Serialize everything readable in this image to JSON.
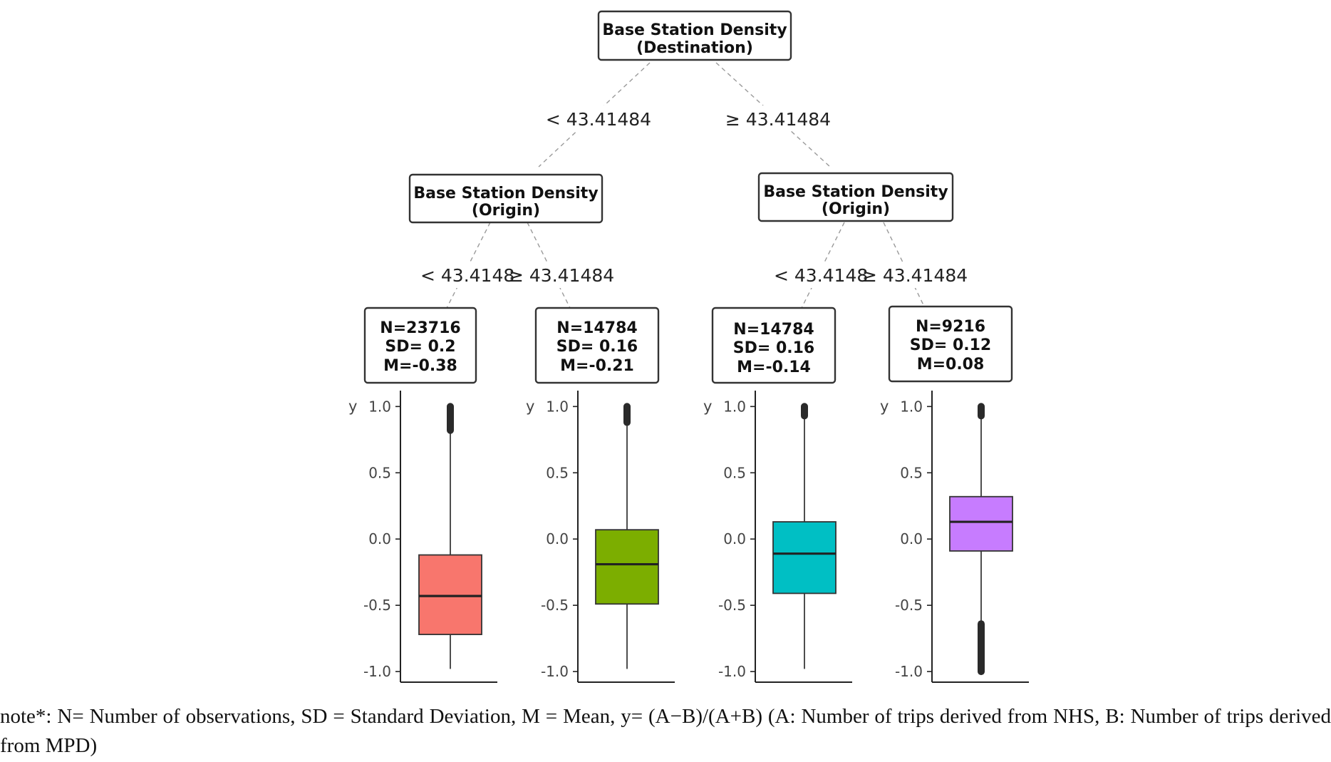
{
  "tree": {
    "root": {
      "line1": "Base Station Density",
      "line2": "(Destination)",
      "split_left": "< 43.41484",
      "split_right": "≥ 43.41484"
    },
    "left_child": {
      "line1": "Base Station Density",
      "line2": "(Origin)",
      "split_left": "< 43.4148",
      "split_right": "≥ 43.41484"
    },
    "right_child": {
      "line1": "Base Station Density",
      "line2": "(Origin)",
      "split_left": "< 43.4148",
      "split_right": "≥ 43.41484"
    },
    "leaves": [
      {
        "n": "N=23716",
        "sd": "SD= 0.2",
        "m": "M=-0.38"
      },
      {
        "n": "N=14784",
        "sd": "SD= 0.16",
        "m": "M=-0.21"
      },
      {
        "n": "N=14784",
        "sd": "SD= 0.16",
        "m": "M=-0.14"
      },
      {
        "n": "N=9216",
        "sd": "SD= 0.12",
        "m": "M=0.08"
      }
    ]
  },
  "chart_data": {
    "type": "box",
    "ylabel": "y",
    "ylim": [
      -1.08,
      1.12
    ],
    "yticks": [
      1.0,
      0.5,
      0.0,
      -0.5,
      -1.0
    ],
    "ytick_labels": [
      "1.0",
      "0.5",
      "0.0",
      "-0.5",
      "-1.0"
    ],
    "boxes": [
      {
        "color": "#F8766D",
        "whisker_low": -0.98,
        "q1": -0.72,
        "median": -0.43,
        "q3": -0.12,
        "whisker_high": 0.82,
        "outliers_range": [
          0.82,
          1.0
        ]
      },
      {
        "color": "#7CAE00",
        "whisker_low": -0.98,
        "q1": -0.49,
        "median": -0.19,
        "q3": 0.07,
        "whisker_high": 0.88,
        "outliers_range": [
          0.88,
          1.0
        ]
      },
      {
        "color": "#00BFC4",
        "whisker_low": -0.98,
        "q1": -0.41,
        "median": -0.11,
        "q3": 0.13,
        "whisker_high": 0.93,
        "outliers_range": [
          0.93,
          1.0
        ]
      },
      {
        "color": "#C77CFF",
        "whisker_low": -0.64,
        "q1": -0.09,
        "median": 0.13,
        "q3": 0.32,
        "whisker_high": 0.93,
        "outliers_range": [
          0.93,
          1.0
        ],
        "outliers_low_range": [
          -1.0,
          -0.64
        ]
      }
    ]
  },
  "note": "note*: N= Number of observations, SD = Standard Deviation, M = Mean, y= (A−B)/(A+B) (A: Number of trips derived from NHS, B: Number of trips derived from MPD)"
}
